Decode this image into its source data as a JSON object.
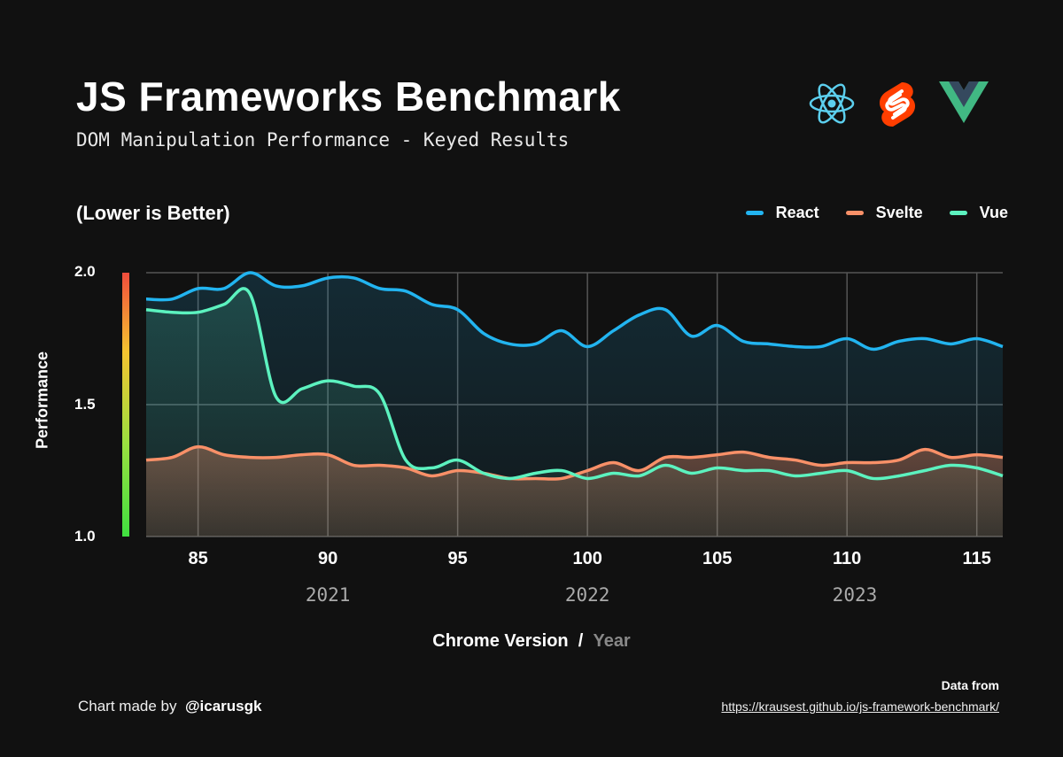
{
  "header": {
    "title": "JS Frameworks Benchmark",
    "subtitle": "DOM Manipulation Performance - Keyed Results",
    "logos": [
      "react-logo",
      "svelte-logo",
      "vue-logo"
    ]
  },
  "note": "(Lower is Better)",
  "footer": {
    "credit_prefix": "Chart made by",
    "credit_handle": "@icarusgk",
    "source_label": "Data from",
    "source_url": "https://krausest.github.io/js-framework-benchmark/"
  },
  "chart_data": {
    "type": "area",
    "ylabel": "Performance",
    "xlabel": "Chrome Version",
    "xlabel2": "Year",
    "ylim": [
      1.0,
      2.0
    ],
    "xlim": [
      83,
      116
    ],
    "yticks": [
      "1.0",
      "1.5",
      "2.0"
    ],
    "xticks": [
      "85",
      "90",
      "95",
      "100",
      "105",
      "110",
      "115"
    ],
    "years": [
      {
        "label": "2021",
        "at": 90
      },
      {
        "label": "2022",
        "at": 100
      },
      {
        "label": "2023",
        "at": 110.3
      }
    ],
    "grid": true,
    "legend": "top-right",
    "x": [
      83,
      84,
      85,
      86,
      87,
      88,
      89,
      90,
      91,
      92,
      93,
      94,
      95,
      96,
      97,
      98,
      99,
      100,
      101,
      102,
      103,
      104,
      105,
      106,
      107,
      108,
      109,
      110,
      111,
      112,
      113,
      114,
      115,
      116
    ],
    "series": [
      {
        "name": "React",
        "color": "#22b4f0",
        "values": [
          1.9,
          1.9,
          1.94,
          1.94,
          2.0,
          1.95,
          1.95,
          1.98,
          1.98,
          1.94,
          1.93,
          1.88,
          1.86,
          1.77,
          1.73,
          1.73,
          1.78,
          1.72,
          1.78,
          1.84,
          1.86,
          1.76,
          1.8,
          1.74,
          1.73,
          1.72,
          1.72,
          1.75,
          1.71,
          1.74,
          1.75,
          1.73,
          1.75,
          1.72
        ]
      },
      {
        "name": "Svelte",
        "color": "#f89068",
        "values": [
          1.29,
          1.3,
          1.34,
          1.31,
          1.3,
          1.3,
          1.31,
          1.31,
          1.27,
          1.27,
          1.26,
          1.23,
          1.25,
          1.24,
          1.22,
          1.22,
          1.22,
          1.25,
          1.28,
          1.25,
          1.3,
          1.3,
          1.31,
          1.32,
          1.3,
          1.29,
          1.27,
          1.28,
          1.28,
          1.29,
          1.33,
          1.3,
          1.31,
          1.3
        ]
      },
      {
        "name": "Vue",
        "color": "#5cf2bf",
        "values": [
          1.86,
          1.85,
          1.85,
          1.88,
          1.92,
          1.53,
          1.56,
          1.59,
          1.57,
          1.54,
          1.29,
          1.26,
          1.29,
          1.24,
          1.22,
          1.24,
          1.25,
          1.22,
          1.24,
          1.23,
          1.27,
          1.24,
          1.26,
          1.25,
          1.25,
          1.23,
          1.24,
          1.25,
          1.22,
          1.23,
          1.25,
          1.27,
          1.26,
          1.23
        ]
      }
    ]
  }
}
